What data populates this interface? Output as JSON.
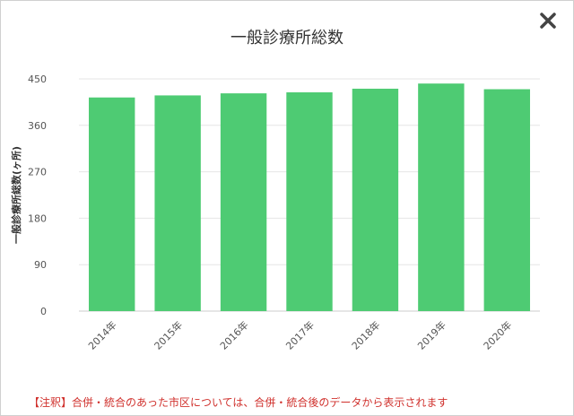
{
  "dialog": {
    "close_icon": "close-icon",
    "note": "【注釈】合併・統合のあった市区については、合併・統合後のデータから表示されます"
  },
  "colors": {
    "bar": "#4ecb73",
    "grid": "#e6e6e6",
    "note": "#d0312d"
  },
  "chart_data": {
    "type": "bar",
    "title": "一般診療所総数",
    "xlabel": "",
    "ylabel": "一般診療所総数(ヶ所)",
    "categories": [
      "2014年",
      "2015年",
      "2016年",
      "2017年",
      "2018年",
      "2019年",
      "2020年"
    ],
    "values": [
      414,
      418,
      422,
      424,
      431,
      441,
      430
    ],
    "ylim": [
      0,
      450
    ],
    "yticks": [
      0,
      90,
      180,
      270,
      360,
      450
    ],
    "grid": true,
    "legend": "none"
  }
}
